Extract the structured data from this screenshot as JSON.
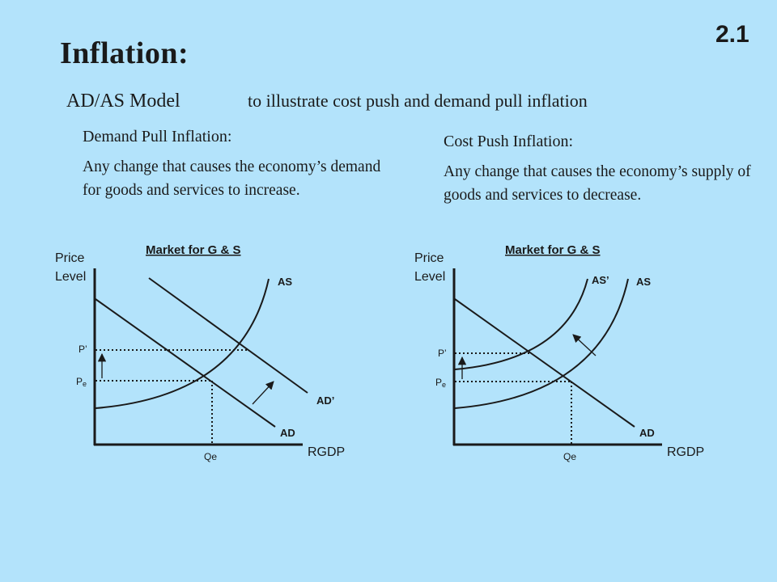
{
  "slide": {
    "title": "Inflation:",
    "number": "2.1",
    "subtitle": "AD/AS Model",
    "subtitle_desc": "to illustrate cost push and demand pull inflation"
  },
  "demand_pull": {
    "heading": "Demand Pull Inflation:",
    "body": "Any change that causes the economy’s demand for goods and services to increase."
  },
  "cost_push": {
    "heading": "Cost Push Inflation:",
    "body": "Any change that causes the economy’s supply of goods and services to decrease."
  },
  "charts": [
    {
      "market_title": "Market for G & S",
      "y_label_1": "Price",
      "y_label_2": "Level",
      "x_label": "RGDP",
      "p_prime": "P’",
      "pe_main": "P",
      "pe_sub": "e",
      "qe": "Qe",
      "curve_as": "AS",
      "curve_ad": "AD",
      "curve_shift": "AD’"
    },
    {
      "market_title": "Market for G & S",
      "y_label_1": "Price",
      "y_label_2": "Level",
      "x_label": "RGDP",
      "p_prime": "P’",
      "pe_main": "P",
      "pe_sub": "e",
      "qe": "Qe",
      "curve_as": "AS",
      "curve_ad": "AD",
      "curve_shift": "AS’"
    }
  ]
}
